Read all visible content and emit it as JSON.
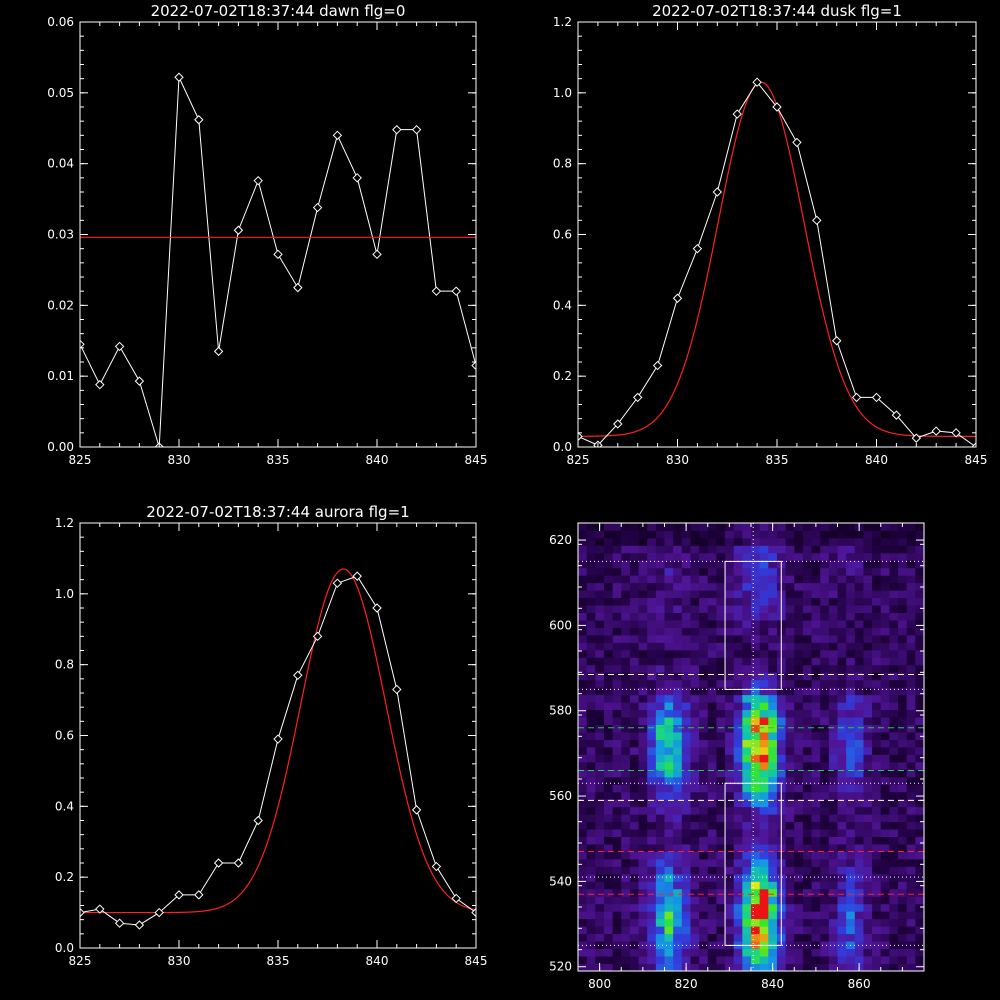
{
  "chart_data": [
    {
      "type": "line",
      "title": "2022-07-02T18:37:44 dawn flg=0",
      "xlim": [
        825,
        845
      ],
      "ylim": [
        0,
        0.06
      ],
      "xticks": [
        "825",
        "830",
        "835",
        "840",
        "845"
      ],
      "yticks": [
        "0.00",
        "0.01",
        "0.02",
        "0.03",
        "0.04",
        "0.05",
        "0.06"
      ],
      "series": [
        {
          "kind": "data",
          "color": "#ffffff",
          "marker": "diamond",
          "x": [
            825,
            826,
            827,
            828,
            829,
            830,
            831,
            832,
            833,
            834,
            835,
            836,
            837,
            838,
            839,
            840,
            841,
            842,
            843,
            844,
            845
          ],
          "y": [
            0.0145,
            0.0088,
            0.0142,
            0.0093,
            0.0,
            0.0522,
            0.0462,
            0.0135,
            0.0306,
            0.0376,
            0.0272,
            0.0225,
            0.0338,
            0.044,
            0.038,
            0.0272,
            0.0448,
            0.0448,
            0.022,
            0.022,
            0.0115
          ]
        },
        {
          "kind": "fit",
          "color": "#ff2020",
          "x": [
            825,
            845
          ],
          "y": [
            0.0296,
            0.0296
          ]
        }
      ]
    },
    {
      "type": "line",
      "title": "2022-07-02T18:37:44 dusk flg=1",
      "xlim": [
        825,
        845
      ],
      "ylim": [
        0,
        1.2
      ],
      "xticks": [
        "825",
        "830",
        "835",
        "840",
        "845"
      ],
      "yticks": [
        "0.0",
        "0.2",
        "0.4",
        "0.6",
        "0.8",
        "1.0",
        "1.2"
      ],
      "gauss": {
        "a": 1.0,
        "mu": 834.2,
        "sigma": 2.15,
        "c": 0.03,
        "color": "#ff2020"
      },
      "series": [
        {
          "kind": "data",
          "color": "#ffffff",
          "marker": "diamond",
          "x": [
            825,
            826,
            827,
            828,
            829,
            830,
            831,
            832,
            833,
            834,
            835,
            836,
            837,
            838,
            839,
            840,
            841,
            842,
            843,
            844,
            845
          ],
          "y": [
            0.03,
            0.005,
            0.065,
            0.14,
            0.23,
            0.42,
            0.56,
            0.72,
            0.94,
            1.03,
            0.96,
            0.86,
            0.64,
            0.3,
            0.14,
            0.14,
            0.09,
            0.025,
            0.045,
            0.04,
            0.0
          ]
        }
      ]
    },
    {
      "type": "line",
      "title": "2022-07-02T18:37:44 aurora flg=1",
      "xlim": [
        825,
        845
      ],
      "ylim": [
        0,
        1.2
      ],
      "xticks": [
        "825",
        "830",
        "835",
        "840",
        "845"
      ],
      "yticks": [
        "0.0",
        "0.2",
        "0.4",
        "0.6",
        "0.8",
        "1.0",
        "1.2"
      ],
      "gauss": {
        "a": 0.97,
        "mu": 838.3,
        "sigma": 2.15,
        "c": 0.1,
        "color": "#ff2020"
      },
      "series": [
        {
          "kind": "data",
          "color": "#ffffff",
          "marker": "diamond",
          "x": [
            825,
            826,
            827,
            828,
            829,
            830,
            831,
            832,
            833,
            834,
            835,
            836,
            837,
            838,
            839,
            840,
            841,
            842,
            843,
            844,
            845
          ],
          "y": [
            0.1,
            0.11,
            0.07,
            0.065,
            0.1,
            0.15,
            0.15,
            0.24,
            0.24,
            0.36,
            0.59,
            0.77,
            0.88,
            1.03,
            1.05,
            0.96,
            0.73,
            0.39,
            0.23,
            0.14,
            0.1
          ]
        }
      ]
    },
    {
      "type": "heatmap",
      "title": "",
      "xlim": [
        795,
        875
      ],
      "ylim": [
        519,
        624
      ],
      "xticks": [
        "800",
        "820",
        "840",
        "860"
      ],
      "yticks": [
        "520",
        "540",
        "560",
        "580",
        "600",
        "620"
      ],
      "bands": [
        {
          "x": 816,
          "width": 3.0,
          "amp": 0.55
        },
        {
          "x": 837,
          "width": 3.0,
          "amp": 1.0
        },
        {
          "x": 858,
          "width": 2.5,
          "amp": 0.28
        }
      ],
      "boxes": [
        {
          "x0": 829,
          "x1": 842,
          "y0": 585,
          "y1": 615,
          "color": "#ffffff"
        },
        {
          "x0": 829,
          "x1": 842,
          "y0": 525,
          "y1": 563,
          "color": "#ffffff"
        }
      ],
      "hlines": [
        {
          "y": 615,
          "color": "#ffffff",
          "style": "dotted"
        },
        {
          "y": 588.5,
          "color": "#ffffff",
          "style": "dashed"
        },
        {
          "y": 585,
          "color": "#ffffff",
          "style": "dotted"
        },
        {
          "y": 576,
          "color": "#22cc44",
          "style": "dashed"
        },
        {
          "y": 566,
          "color": "#22cc44",
          "style": "dashed"
        },
        {
          "y": 563,
          "color": "#ffffff",
          "style": "dotted"
        },
        {
          "y": 559,
          "color": "#ffffff",
          "style": "dashed"
        },
        {
          "y": 547,
          "color": "#ff2020",
          "style": "dashed"
        },
        {
          "y": 541,
          "color": "#ffffff",
          "style": "dotted"
        },
        {
          "y": 537,
          "color": "#ff2020",
          "style": "dashed"
        },
        {
          "y": 525,
          "color": "#ffffff",
          "style": "dotted"
        }
      ],
      "vlines": [
        {
          "x": 835.5,
          "color": "#ffffff",
          "style": "dotted"
        }
      ]
    }
  ]
}
